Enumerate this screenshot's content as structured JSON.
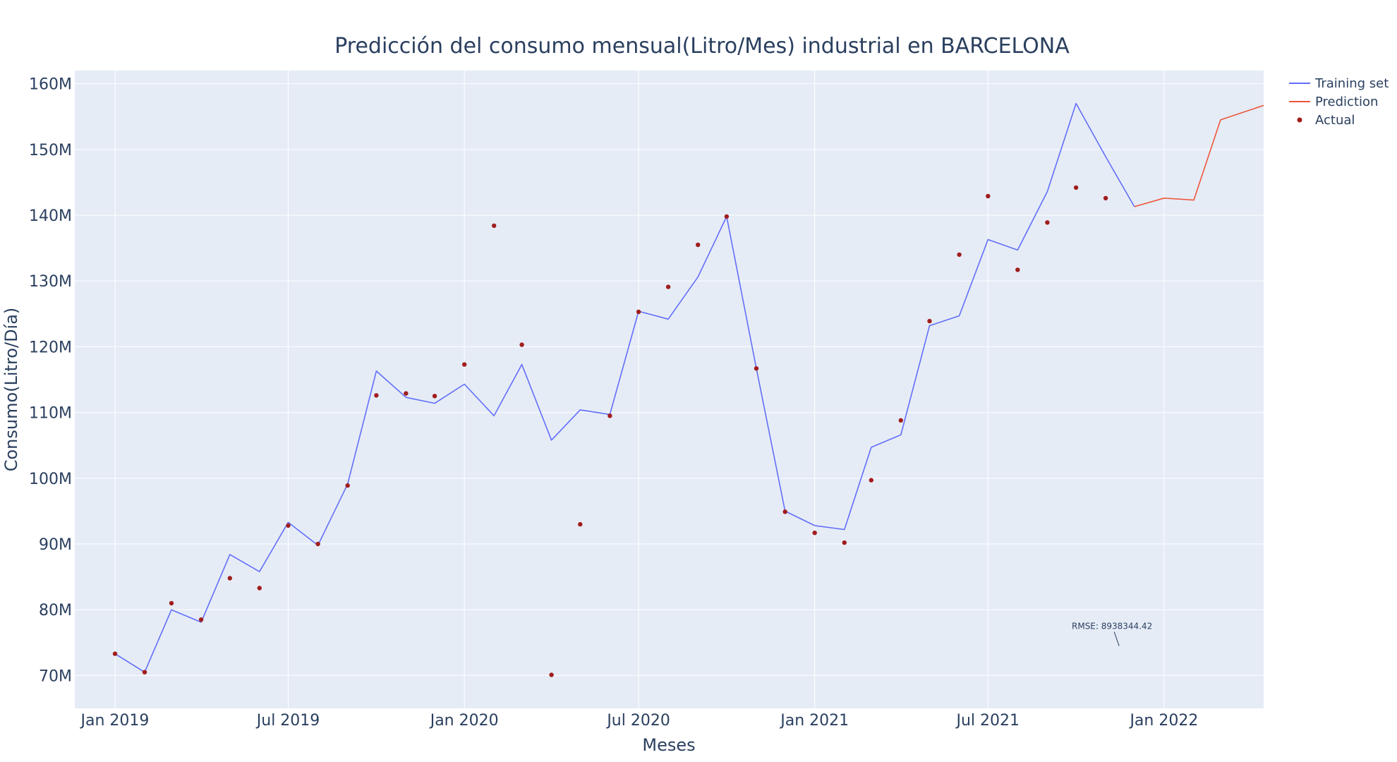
{
  "chart_data": {
    "type": "line",
    "title": "Predicción del consumo mensual(Litro/Mes) industrial en BARCELONA",
    "xlabel": "Meses",
    "ylabel": "Consumo(Litro/Día)",
    "xlim": [
      "2018-11-20",
      "2022-04-15"
    ],
    "ylim": [
      65000000,
      162000000
    ],
    "x_ticks": [
      {
        "date": "2019-01-01",
        "label": "Jan 2019"
      },
      {
        "date": "2019-07-01",
        "label": "Jul 2019"
      },
      {
        "date": "2020-01-01",
        "label": "Jan 2020"
      },
      {
        "date": "2020-07-01",
        "label": "Jul 2020"
      },
      {
        "date": "2021-01-01",
        "label": "Jan 2021"
      },
      {
        "date": "2021-07-01",
        "label": "Jul 2021"
      },
      {
        "date": "2022-01-01",
        "label": "Jan 2022"
      }
    ],
    "y_ticks": [
      {
        "value": 70000000,
        "label": "70M"
      },
      {
        "value": 80000000,
        "label": "80M"
      },
      {
        "value": 90000000,
        "label": "90M"
      },
      {
        "value": 100000000,
        "label": "100M"
      },
      {
        "value": 110000000,
        "label": "110M"
      },
      {
        "value": 120000000,
        "label": "120M"
      },
      {
        "value": 130000000,
        "label": "130M"
      },
      {
        "value": 140000000,
        "label": "140M"
      },
      {
        "value": 150000000,
        "label": "150M"
      },
      {
        "value": 160000000,
        "label": "160M"
      }
    ],
    "grid": true,
    "legend_position": "top-right",
    "series": [
      {
        "name": "Training set",
        "mode": "line",
        "color": "#636efa",
        "points": [
          [
            "2019-01-01",
            73300000
          ],
          [
            "2019-02-01",
            70500000
          ],
          [
            "2019-03-01",
            80000000
          ],
          [
            "2019-04-01",
            78100000
          ],
          [
            "2019-05-01",
            88400000
          ],
          [
            "2019-06-01",
            85800000
          ],
          [
            "2019-07-01",
            93300000
          ],
          [
            "2019-08-01",
            89800000
          ],
          [
            "2019-09-01",
            99100000
          ],
          [
            "2019-10-01",
            116300000
          ],
          [
            "2019-11-01",
            112300000
          ],
          [
            "2019-12-01",
            111400000
          ],
          [
            "2020-01-01",
            114300000
          ],
          [
            "2020-02-01",
            109500000
          ],
          [
            "2020-03-01",
            117300000
          ],
          [
            "2020-04-01",
            105800000
          ],
          [
            "2020-05-01",
            110400000
          ],
          [
            "2020-06-01",
            109700000
          ],
          [
            "2020-07-01",
            125400000
          ],
          [
            "2020-08-01",
            124200000
          ],
          [
            "2020-09-01",
            130600000
          ],
          [
            "2020-10-01",
            139800000
          ],
          [
            "2020-11-01",
            116700000
          ],
          [
            "2020-12-01",
            95000000
          ],
          [
            "2021-01-01",
            92800000
          ],
          [
            "2021-02-01",
            92200000
          ],
          [
            "2021-03-01",
            104700000
          ],
          [
            "2021-04-01",
            106600000
          ],
          [
            "2021-05-01",
            123200000
          ],
          [
            "2021-06-01",
            124700000
          ],
          [
            "2021-07-01",
            136300000
          ],
          [
            "2021-08-01",
            134700000
          ],
          [
            "2021-09-01",
            143600000
          ],
          [
            "2021-10-01",
            157000000
          ],
          [
            "2021-11-01",
            148900000
          ],
          [
            "2021-12-01",
            141300000
          ]
        ]
      },
      {
        "name": "Prediction",
        "mode": "line",
        "color": "#ef553b",
        "points": [
          [
            "2021-12-01",
            141300000
          ],
          [
            "2022-01-01",
            142600000
          ],
          [
            "2022-02-01",
            142300000
          ],
          [
            "2022-03-01",
            154500000
          ],
          [
            "2022-04-15",
            156700000
          ]
        ]
      },
      {
        "name": "Actual",
        "mode": "markers",
        "color": "#a11d1d",
        "points": [
          [
            "2019-01-01",
            73300000
          ],
          [
            "2019-02-01",
            70500000
          ],
          [
            "2019-03-01",
            81000000
          ],
          [
            "2019-04-01",
            78500000
          ],
          [
            "2019-05-01",
            84800000
          ],
          [
            "2019-06-01",
            83300000
          ],
          [
            "2019-07-01",
            92800000
          ],
          [
            "2019-08-01",
            90000000
          ],
          [
            "2019-09-01",
            98900000
          ],
          [
            "2019-10-01",
            112600000
          ],
          [
            "2019-11-01",
            112900000
          ],
          [
            "2019-12-01",
            112500000
          ],
          [
            "2020-01-01",
            117300000
          ],
          [
            "2020-02-01",
            138400000
          ],
          [
            "2020-03-01",
            120300000
          ],
          [
            "2020-04-01",
            70100000
          ],
          [
            "2020-05-01",
            93000000
          ],
          [
            "2020-06-01",
            109500000
          ],
          [
            "2020-07-01",
            125300000
          ],
          [
            "2020-08-01",
            129100000
          ],
          [
            "2020-09-01",
            135500000
          ],
          [
            "2020-10-01",
            139800000
          ],
          [
            "2020-11-01",
            116700000
          ],
          [
            "2020-12-01",
            94900000
          ],
          [
            "2021-01-01",
            91700000
          ],
          [
            "2021-02-01",
            90200000
          ],
          [
            "2021-03-01",
            99700000
          ],
          [
            "2021-04-01",
            108800000
          ],
          [
            "2021-05-01",
            123900000
          ],
          [
            "2021-06-01",
            134000000
          ],
          [
            "2021-07-01",
            142900000
          ],
          [
            "2021-08-01",
            131700000
          ],
          [
            "2021-09-01",
            138900000
          ],
          [
            "2021-10-01",
            144200000
          ],
          [
            "2021-11-01",
            142600000
          ]
        ]
      }
    ],
    "annotations": [
      {
        "text": "RMSE: 8938344.42",
        "x": "2021-11-15",
        "y": 74500000
      }
    ]
  }
}
